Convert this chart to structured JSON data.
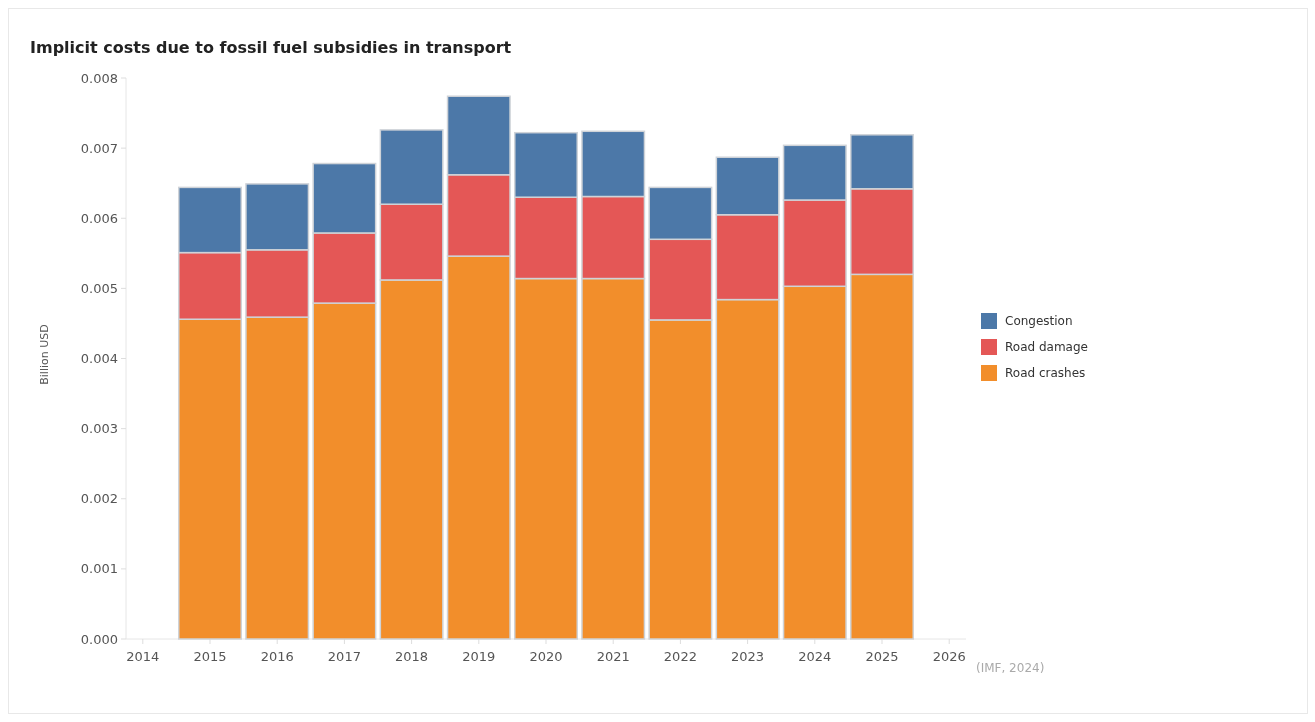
{
  "chart_data": {
    "type": "bar",
    "title": "Implicit costs due to fossil fuel subsidies in transport",
    "ylabel": "Billion USD",
    "stacked": true,
    "x": [
      2015,
      2016,
      2017,
      2018,
      2019,
      2020,
      2021,
      2022,
      2023,
      2024,
      2025
    ],
    "series": [
      {
        "name": "Road crashes",
        "color": "#f28e2b",
        "values": [
          0.00456,
          0.00459,
          0.00479,
          0.00512,
          0.00546,
          0.00514,
          0.00514,
          0.00455,
          0.00484,
          0.00503,
          0.0052
        ]
      },
      {
        "name": "Road damage",
        "color": "#e45756",
        "values": [
          0.00095,
          0.00096,
          0.001,
          0.00108,
          0.00116,
          0.00116,
          0.00117,
          0.00115,
          0.00121,
          0.00123,
          0.00122
        ]
      },
      {
        "name": "Congestion",
        "color": "#4c78a8",
        "values": [
          0.00093,
          0.00094,
          0.00099,
          0.00106,
          0.00112,
          0.00092,
          0.00093,
          0.00074,
          0.00082,
          0.00078,
          0.00077
        ]
      }
    ],
    "xlim": [
      2013.75,
      2026.25
    ],
    "xticks": [
      2014,
      2015,
      2016,
      2017,
      2018,
      2019,
      2020,
      2021,
      2022,
      2023,
      2024,
      2025,
      2026
    ],
    "ylim": [
      0,
      0.008
    ],
    "yticks": [
      {
        "value": 0,
        "label": "0.000"
      },
      {
        "value": 0.001,
        "label": "0.001"
      },
      {
        "value": 0.002,
        "label": "0.002"
      },
      {
        "value": 0.003,
        "label": "0.003"
      },
      {
        "value": 0.004,
        "label": "0.004"
      },
      {
        "value": 0.005,
        "label": "0.005"
      },
      {
        "value": 0.006,
        "label": "0.006"
      },
      {
        "value": 0.007,
        "label": "0.007"
      },
      {
        "value": 0.008,
        "label": "0.008"
      }
    ],
    "legend": "right",
    "annotations": [
      "(IMF, 2024)"
    ]
  }
}
